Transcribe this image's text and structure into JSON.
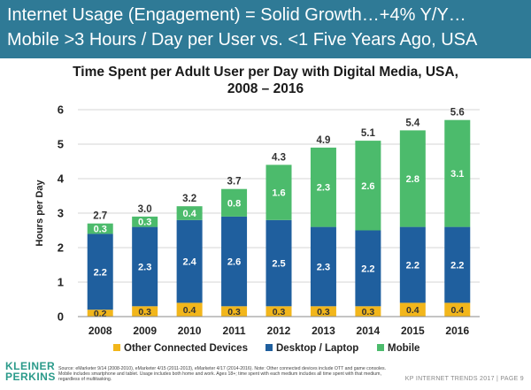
{
  "header": {
    "line1": "Internet Usage (Engagement) = Solid Growth…+4% Y/Y…",
    "line2": "Mobile >3 Hours / Day per User vs. <1 Five Years Ago, USA"
  },
  "chart_data": {
    "type": "bar",
    "stacked": true,
    "title_line1": "Time Spent per Adult User per Day with Digital Media, USA,",
    "title_line2": "2008 – 2016",
    "xlabel": "",
    "ylabel": "Hours per Day",
    "ylim": [
      0,
      6
    ],
    "yticks": [
      "0",
      "1",
      "2",
      "3",
      "4",
      "5",
      "6"
    ],
    "categories": [
      "2008",
      "2009",
      "2010",
      "2011",
      "2012",
      "2013",
      "2014",
      "2015",
      "2016"
    ],
    "series": [
      {
        "name": "Other Connected Devices",
        "color": "#f2b61b",
        "label_color": "#333333",
        "values": [
          0.2,
          0.3,
          0.4,
          0.3,
          0.3,
          0.3,
          0.3,
          0.4,
          0.4
        ],
        "labels": [
          "0.2",
          "0.3",
          "0.4",
          "0.3",
          "0.3",
          "0.3",
          "0.3",
          "0.4",
          "0.4"
        ]
      },
      {
        "name": "Desktop / Laptop",
        "color": "#1f5f9e",
        "label_color": "#ffffff",
        "values": [
          2.2,
          2.3,
          2.4,
          2.6,
          2.5,
          2.3,
          2.2,
          2.2,
          2.2
        ],
        "labels": [
          "2.2",
          "2.3",
          "2.4",
          "2.6",
          "2.5",
          "2.3",
          "2.2",
          "2.2",
          "2.2"
        ]
      },
      {
        "name": "Mobile",
        "color": "#4cbb6c",
        "label_color": "#ffffff",
        "values": [
          0.3,
          0.3,
          0.4,
          0.8,
          1.6,
          2.3,
          2.6,
          2.8,
          3.1
        ],
        "labels": [
          "0.3",
          "0.3",
          "0.4",
          "0.8",
          "1.6",
          "2.3",
          "2.6",
          "2.8",
          "3.1"
        ]
      }
    ],
    "totals": [
      2.7,
      3.0,
      3.2,
      3.7,
      4.3,
      4.9,
      5.1,
      5.4,
      5.6
    ],
    "total_labels": [
      "2.7",
      "3.0",
      "3.2",
      "3.7",
      "4.3",
      "4.9",
      "5.1",
      "5.4",
      "5.6"
    ],
    "legend_position": "bottom"
  },
  "footer": {
    "logo_line1": "KLEINER",
    "logo_line2": "PERKINS",
    "source": "Source: eMarketer 9/14 (2008-2010), eMarketer 4/15 (2011-2013), eMarketer 4/17 (2014-2016). Note: Other connected devices include OTT and game consoles. Mobile includes smartphone and tablet. Usage includes both home and work. Ages 18+; time spent with each medium includes all time spent with that medium, regardless of multitasking.",
    "right_text": "KP INTERNET TRENDS 2017  |  PAGE 9"
  }
}
